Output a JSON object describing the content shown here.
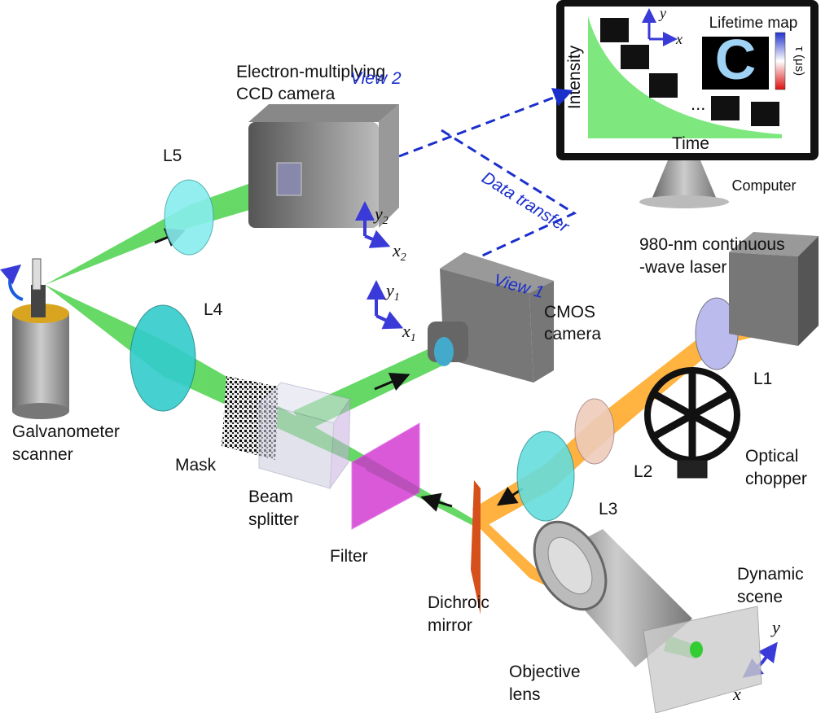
{
  "emccd_camera": {
    "lines": [
      "Electron-multiplying",
      "CCD camera"
    ],
    "view": "View 2"
  },
  "cmos_camera": {
    "lines": [
      "CMOS",
      "camera"
    ],
    "view": "View 1"
  },
  "data_transfer": "Data transfer",
  "computer": {
    "label": "Computer",
    "screen": {
      "y_axis": "Intensity",
      "x_axis": "Time",
      "map_title": "Lifetime map",
      "colorbar": "τ (μs)",
      "ellipsis": "...",
      "axis_y": "y",
      "axis_x": "x"
    }
  },
  "laser": {
    "lines": [
      "980-nm continuous",
      "-wave laser"
    ]
  },
  "lenses": {
    "l1": "L1",
    "l2": "L2",
    "l3": "L3",
    "l4": "L4",
    "l5": "L5"
  },
  "chopper": {
    "lines": [
      "Optical",
      "chopper"
    ]
  },
  "galvanometer": {
    "lines": [
      "Galvanometer",
      "scanner"
    ]
  },
  "mask": "Mask",
  "beam_splitter": {
    "lines": [
      "Beam",
      "splitter"
    ]
  },
  "filter": "Filter",
  "dichroic_mirror": {
    "lines": [
      "Dichroic",
      "mirror"
    ]
  },
  "objective_lens": {
    "lines": [
      "Objective",
      "lens"
    ]
  },
  "dynamic_scene": {
    "lines": [
      "Dynamic",
      "scene"
    ],
    "axis_y": "y",
    "axis_x": "x"
  },
  "coords": {
    "view2": {
      "y": "y",
      "y_sub": "2",
      "x": "x",
      "x_sub": "2"
    },
    "view1": {
      "y": "y",
      "y_sub": "1",
      "x": "x",
      "x_sub": "1"
    }
  }
}
